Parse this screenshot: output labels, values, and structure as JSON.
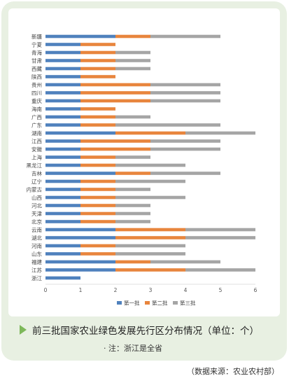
{
  "caption": "前三批国家农业绿色发展先行区分布情况（单位：个）",
  "note": "· 注：浙江是全省",
  "source": "（数据来源：农业农村部）",
  "chart_data": {
    "type": "bar",
    "orientation": "horizontal",
    "stacked": true,
    "categories": [
      "浙江",
      "江苏",
      "福建",
      "山东",
      "河南",
      "湖北",
      "云南",
      "北京",
      "天津",
      "河北",
      "山西",
      "内蒙古",
      "辽宁",
      "吉林",
      "黑龙江",
      "上海",
      "安徽",
      "江西",
      "湖南",
      "广东",
      "广西",
      "海南",
      "重庆",
      "四川",
      "贵州",
      "陕西",
      "西藏",
      "甘肃",
      "青海",
      "宁夏",
      "新疆"
    ],
    "series": [
      {
        "name": "第一批",
        "color": "#4f81bd",
        "values": [
          1,
          2,
          2,
          1,
          1,
          2,
          2,
          1,
          1,
          1,
          1,
          1,
          1,
          2,
          1,
          1,
          1,
          1,
          2,
          1,
          1,
          1,
          1,
          1,
          1,
          1,
          1,
          1,
          1,
          1,
          2
        ]
      },
      {
        "name": "第二批",
        "color": "#e8853d",
        "values": [
          0,
          2,
          1,
          1,
          1,
          2,
          2,
          1,
          1,
          1,
          1,
          1,
          1,
          1,
          1,
          1,
          2,
          2,
          2,
          1,
          1,
          1,
          2,
          2,
          2,
          1,
          1,
          1,
          1,
          1,
          1
        ]
      },
      {
        "name": "第三批",
        "color": "#a5a5a5",
        "values": [
          0,
          2,
          2,
          2,
          2,
          2,
          2,
          1,
          1,
          1,
          2,
          1,
          2,
          2,
          2,
          1,
          2,
          2,
          2,
          3,
          1,
          0,
          2,
          2,
          2,
          0,
          1,
          1,
          1,
          0,
          2
        ]
      }
    ],
    "xlim": [
      0,
      6
    ],
    "xticks": [
      0,
      1,
      2,
      3,
      4,
      5,
      6
    ],
    "grid": false,
    "legend": "bottom"
  }
}
